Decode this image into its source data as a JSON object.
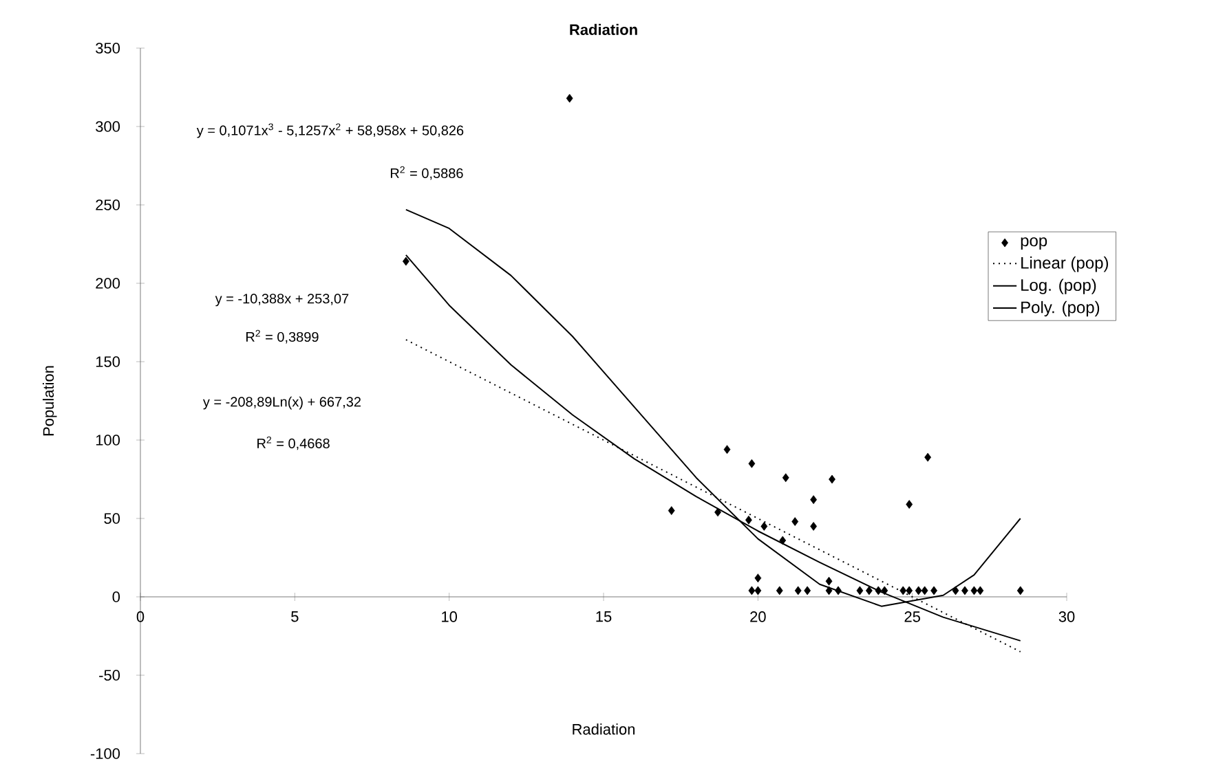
{
  "chart_data": {
    "type": "scatter",
    "title": "Radiation",
    "xlabel": "Radiation",
    "ylabel": "Population",
    "xlim": [
      0,
      30
    ],
    "ylim": [
      -100,
      350
    ],
    "xticks": [
      0,
      5,
      10,
      15,
      20,
      25,
      30
    ],
    "yticks": [
      -100,
      -50,
      0,
      50,
      100,
      150,
      200,
      250,
      300,
      350
    ],
    "grid": false,
    "legend": "right",
    "series": [
      {
        "name": "pop",
        "type": "scatter",
        "marker": "diamond",
        "color": "#000000",
        "x": [
          8.6,
          13.9,
          17.2,
          18.7,
          19.0,
          19.7,
          19.8,
          20.2,
          20.8,
          20.9,
          21.2,
          21.8,
          21.8,
          22.4,
          24.9,
          25.5,
          19.8,
          20.0,
          20.0,
          20.7,
          21.3,
          21.6,
          22.3,
          22.3,
          22.6,
          23.3,
          23.6,
          23.9,
          24.1,
          24.7,
          24.9,
          25.2,
          25.4,
          25.7,
          26.4,
          26.7,
          27.0,
          27.2,
          28.5
        ],
        "values": [
          214,
          318,
          55,
          54,
          94,
          49,
          85,
          45,
          36,
          76,
          48,
          62,
          45,
          75,
          59,
          89,
          4,
          4,
          12,
          4,
          4,
          4,
          4,
          10,
          4,
          4,
          4,
          4,
          4,
          4,
          4,
          4,
          4,
          4,
          4,
          4,
          4,
          4,
          4
        ]
      },
      {
        "name": "Linear (pop)",
        "type": "line",
        "marker": "none",
        "line_style": "dotted",
        "color": "#000000",
        "x": [
          8.6,
          28.5
        ],
        "values": [
          164,
          -35
        ]
      },
      {
        "name": "Log. (pop)",
        "type": "line",
        "marker": "none",
        "line_style": "solid",
        "color": "#000000",
        "x": [
          8.6,
          10,
          12,
          14,
          16,
          18,
          20,
          22,
          24,
          26,
          28.5
        ],
        "values": [
          218,
          186,
          148,
          116,
          88,
          64,
          42,
          22,
          3,
          -13,
          -28
        ]
      },
      {
        "name": "Poly. (pop)",
        "type": "line",
        "marker": "none",
        "line_style": "solid",
        "color": "#000000",
        "x": [
          8.6,
          10,
          12,
          14,
          16,
          18,
          20,
          22,
          24,
          26,
          27,
          28.5
        ],
        "values": [
          247,
          235,
          205,
          166,
          121,
          76,
          37,
          8,
          -6,
          1,
          14,
          50
        ]
      }
    ],
    "annotations": [
      "y = 0,1071x$^{3}$ - 5,1257x$^{2}$ + 58,958x + 50,826",
      "R$^{2}$ = 0,5886",
      "y = -10,388x + 253,07",
      "R$^{2}$ = 0,3899",
      "y = -208,89Ln(x) + 667,32",
      "R$^{2}$ = 0,4668"
    ]
  }
}
